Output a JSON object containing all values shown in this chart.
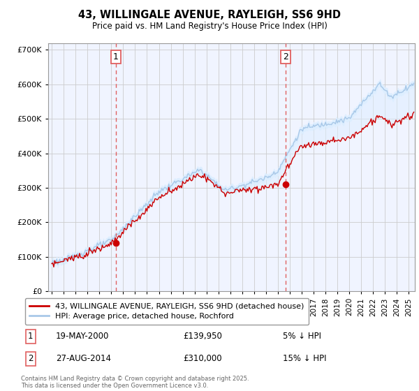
{
  "title": "43, WILLINGALE AVENUE, RAYLEIGH, SS6 9HD",
  "subtitle": "Price paid vs. HM Land Registry's House Price Index (HPI)",
  "ylim": [
    0,
    720000
  ],
  "xlim_start": 1994.7,
  "xlim_end": 2025.5,
  "hpi_color": "#a8c8e8",
  "hpi_fill_color": "#ddeeff",
  "price_color": "#cc0000",
  "marker1_x": 2000.38,
  "marker1_y": 139950,
  "marker1_label": "1",
  "marker1_date": "19-MAY-2000",
  "marker1_price": "£139,950",
  "marker1_hpi": "5% ↓ HPI",
  "marker2_x": 2014.65,
  "marker2_y": 310000,
  "marker2_label": "2",
  "marker2_date": "27-AUG-2014",
  "marker2_price": "£310,000",
  "marker2_hpi": "15% ↓ HPI",
  "legend_line1": "43, WILLINGALE AVENUE, RAYLEIGH, SS6 9HD (detached house)",
  "legend_line2": "HPI: Average price, detached house, Rochford",
  "footnote": "Contains HM Land Registry data © Crown copyright and database right 2025.\nThis data is licensed under the Open Government Licence v3.0.",
  "grid_color": "#cccccc",
  "background_color": "#ffffff",
  "dashed_line_color": "#e06060",
  "plot_bg_color": "#f0f4ff"
}
